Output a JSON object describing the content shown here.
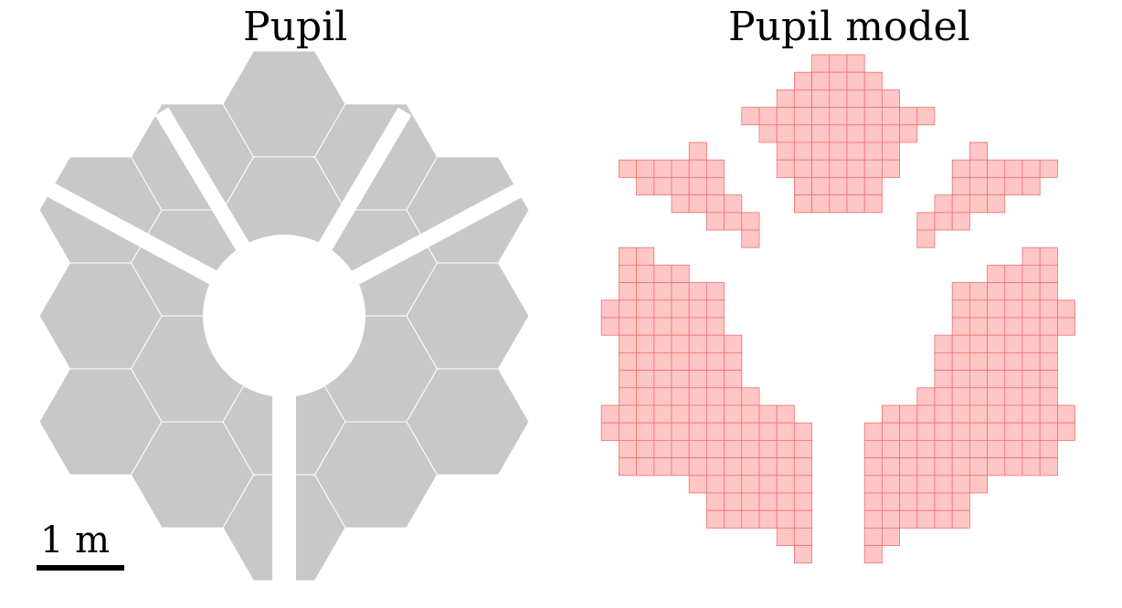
{
  "titles": {
    "left": "Pupil",
    "right": "Pupil model"
  },
  "scale_bar": {
    "label": "1 m"
  },
  "colors": {
    "mirror_fill": "#c8c8c8",
    "mirror_edge": "#ffffff",
    "model_fill": "#ffc6c6",
    "model_stroke": "#f07070"
  }
}
